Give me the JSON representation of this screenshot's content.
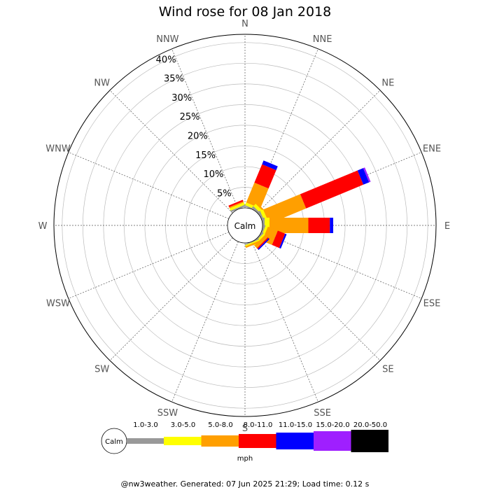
{
  "chart_data": {
    "type": "wind-rose",
    "title": "Wind rose for 08 Jan 2018",
    "directions": [
      "N",
      "NNE",
      "NE",
      "ENE",
      "E",
      "ESE",
      "SE",
      "SSE",
      "S",
      "SSW",
      "SW",
      "WSW",
      "W",
      "WNW",
      "NW",
      "NNW"
    ],
    "ring_labels": [
      "5%",
      "10%",
      "15%",
      "20%",
      "25%",
      "30%",
      "35%",
      "40%"
    ],
    "rings": [
      5,
      10,
      15,
      20,
      25,
      30,
      35,
      40
    ],
    "rmax": 42,
    "calm_label": "Calm",
    "unit": "mph",
    "speed_bins": [
      {
        "range": "1.0-3.0",
        "color": "#999999"
      },
      {
        "range": "3.0-5.0",
        "color": "#ffff00"
      },
      {
        "range": "5.0-8.0",
        "color": "#ff9f00"
      },
      {
        "range": "8.0-11.0",
        "color": "#ff0000"
      },
      {
        "range": "11.0-15.0",
        "color": "#0000ff"
      },
      {
        "range": "15.0-20.0",
        "color": "#9f1fff"
      },
      {
        "range": "20.0-50.0",
        "color": "#000000"
      }
    ],
    "series": [
      {
        "direction": "N",
        "values": [
          0.0,
          0.0,
          0.0,
          0.0,
          0.0,
          0.0,
          0.0
        ]
      },
      {
        "direction": "NNE",
        "values": [
          0.3,
          0.7,
          5.2,
          4.8,
          1.0,
          0.0,
          0.0
        ]
      },
      {
        "direction": "NE",
        "values": [
          0.5,
          0.8,
          0.4,
          0.0,
          0.0,
          0.0,
          0.0
        ]
      },
      {
        "direction": "ENE",
        "values": [
          0.5,
          0.8,
          9.7,
          15.0,
          1.5,
          0.4,
          0.0
        ]
      },
      {
        "direction": "E",
        "values": [
          0.5,
          1.2,
          9.4,
          5.2,
          0.8,
          0.0,
          0.0
        ]
      },
      {
        "direction": "ESE",
        "values": [
          0.4,
          0.6,
          2.6,
          1.9,
          0.4,
          0.0,
          0.0
        ]
      },
      {
        "direction": "SE",
        "values": [
          0.3,
          0.5,
          0.9,
          0.3,
          0.3,
          0.0,
          0.0
        ]
      },
      {
        "direction": "SSE",
        "values": [
          0.2,
          0.3,
          0.4,
          0.0,
          0.0,
          0.0,
          0.0
        ]
      },
      {
        "direction": "S",
        "values": [
          0.0,
          0.0,
          0.0,
          0.0,
          0.0,
          0.0,
          0.0
        ]
      },
      {
        "direction": "SSW",
        "values": [
          0.0,
          0.0,
          0.0,
          0.0,
          0.0,
          0.0,
          0.0
        ]
      },
      {
        "direction": "SW",
        "values": [
          0.0,
          0.0,
          0.0,
          0.0,
          0.0,
          0.0,
          0.0
        ]
      },
      {
        "direction": "WSW",
        "values": [
          0.0,
          0.0,
          0.0,
          0.0,
          0.0,
          0.0,
          0.0
        ]
      },
      {
        "direction": "W",
        "values": [
          0.0,
          0.0,
          0.0,
          0.0,
          0.0,
          0.0,
          0.0
        ]
      },
      {
        "direction": "WNW",
        "values": [
          0.0,
          0.0,
          0.0,
          0.0,
          0.0,
          0.0,
          0.0
        ]
      },
      {
        "direction": "NW",
        "values": [
          0.0,
          0.0,
          0.0,
          0.0,
          0.0,
          0.0,
          0.0
        ]
      },
      {
        "direction": "NNW",
        "values": [
          0.4,
          0.6,
          0.3,
          0.4,
          0.0,
          0.0,
          0.0
        ]
      }
    ]
  },
  "footer": "@nw3weather. Generated: 07 Jun 2025 21:29; Load time: 0.12 s"
}
